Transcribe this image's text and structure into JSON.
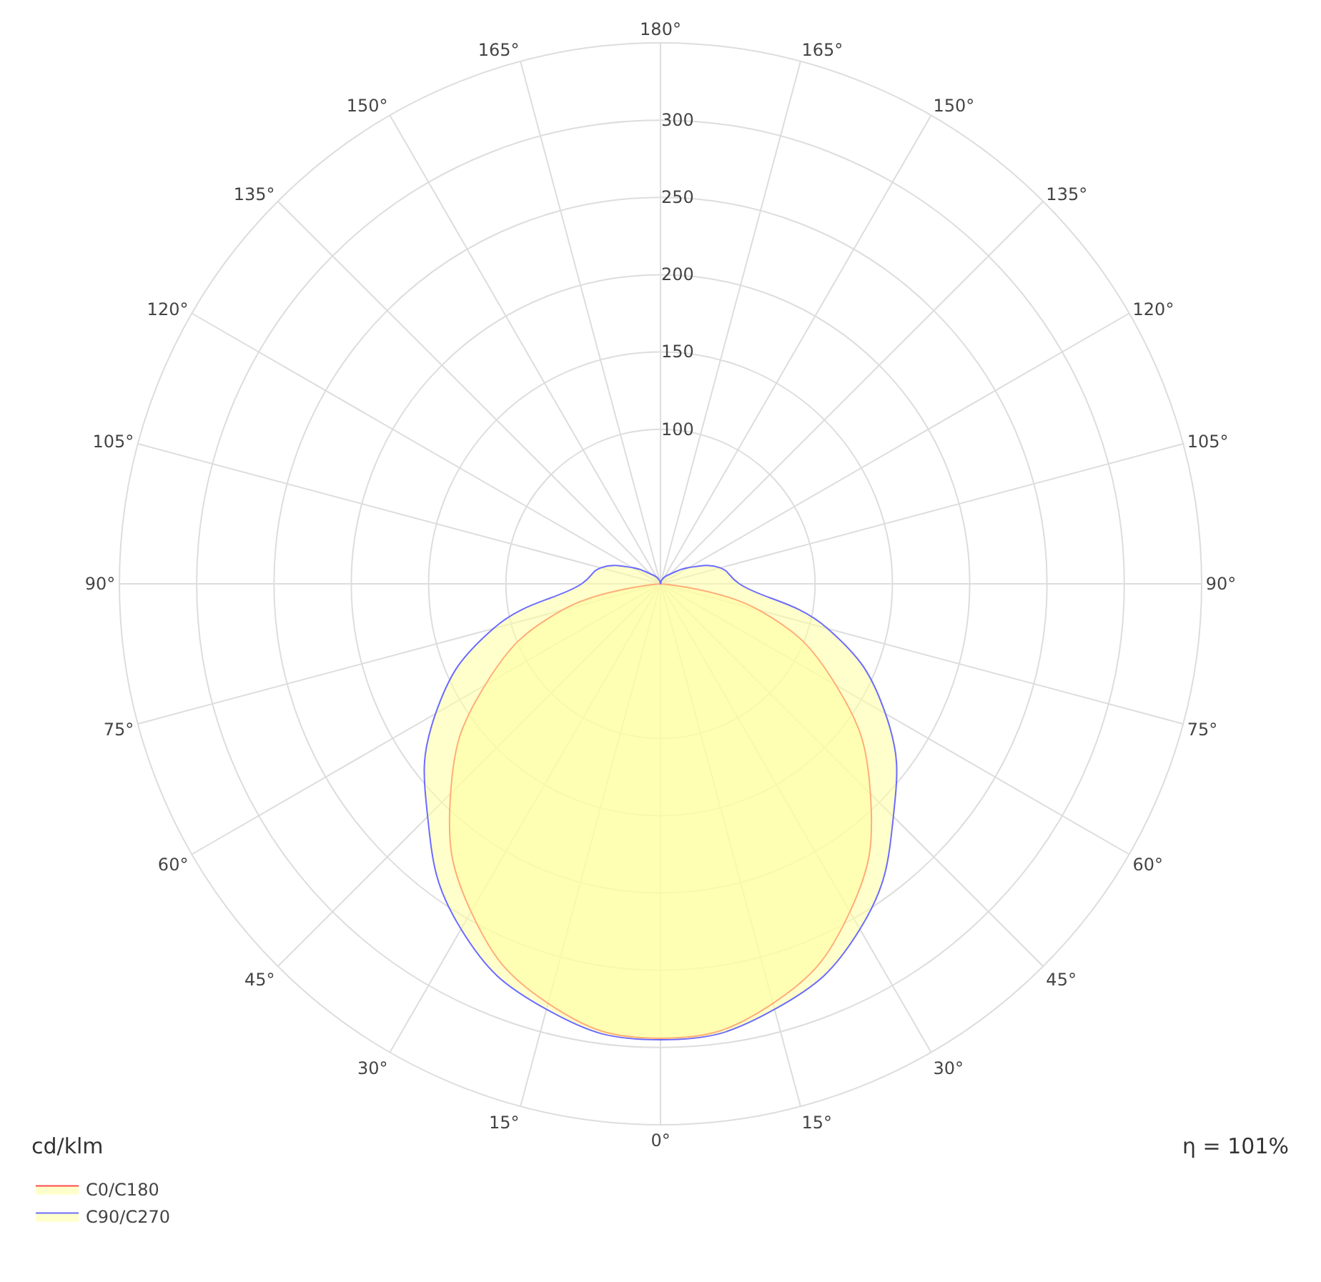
{
  "chart_data": {
    "type": "radar",
    "categories": [
      "180°",
      "165°",
      "150°",
      "135°",
      "120°",
      "105°",
      "90°",
      "75°",
      "60°",
      "45°",
      "30°",
      "15°",
      "0°",
      "15°",
      "30°",
      "45°",
      "60°",
      "75°",
      "90°",
      "105°",
      "120°",
      "135°",
      "150°",
      "165°"
    ],
    "series": [
      {
        "name": "C0/C180",
        "color": "#ff4b4b",
        "values": [
          0,
          0,
          0,
          0,
          0,
          0,
          0,
          66,
          131,
          192,
          245,
          281,
          294,
          281,
          245,
          192,
          131,
          66,
          0,
          0,
          0,
          0,
          0,
          0
        ]
      },
      {
        "name": "C90/C270",
        "color": "#6b6bff",
        "values": [
          0,
          2,
          5,
          9,
          21,
          40,
          51,
          112,
          168,
          213,
          258,
          285,
          295,
          285,
          258,
          213,
          168,
          112,
          51,
          40,
          21,
          9,
          5,
          2
        ]
      }
    ],
    "ylim": [
      0,
      350
    ],
    "yticks": [
      100,
      150,
      200,
      250,
      300
    ],
    "grid": true,
    "legend": "bottom left",
    "marker": "none",
    "line_style": "solid",
    "annotations": [
      "cd/klm",
      "η = 101%"
    ]
  }
}
